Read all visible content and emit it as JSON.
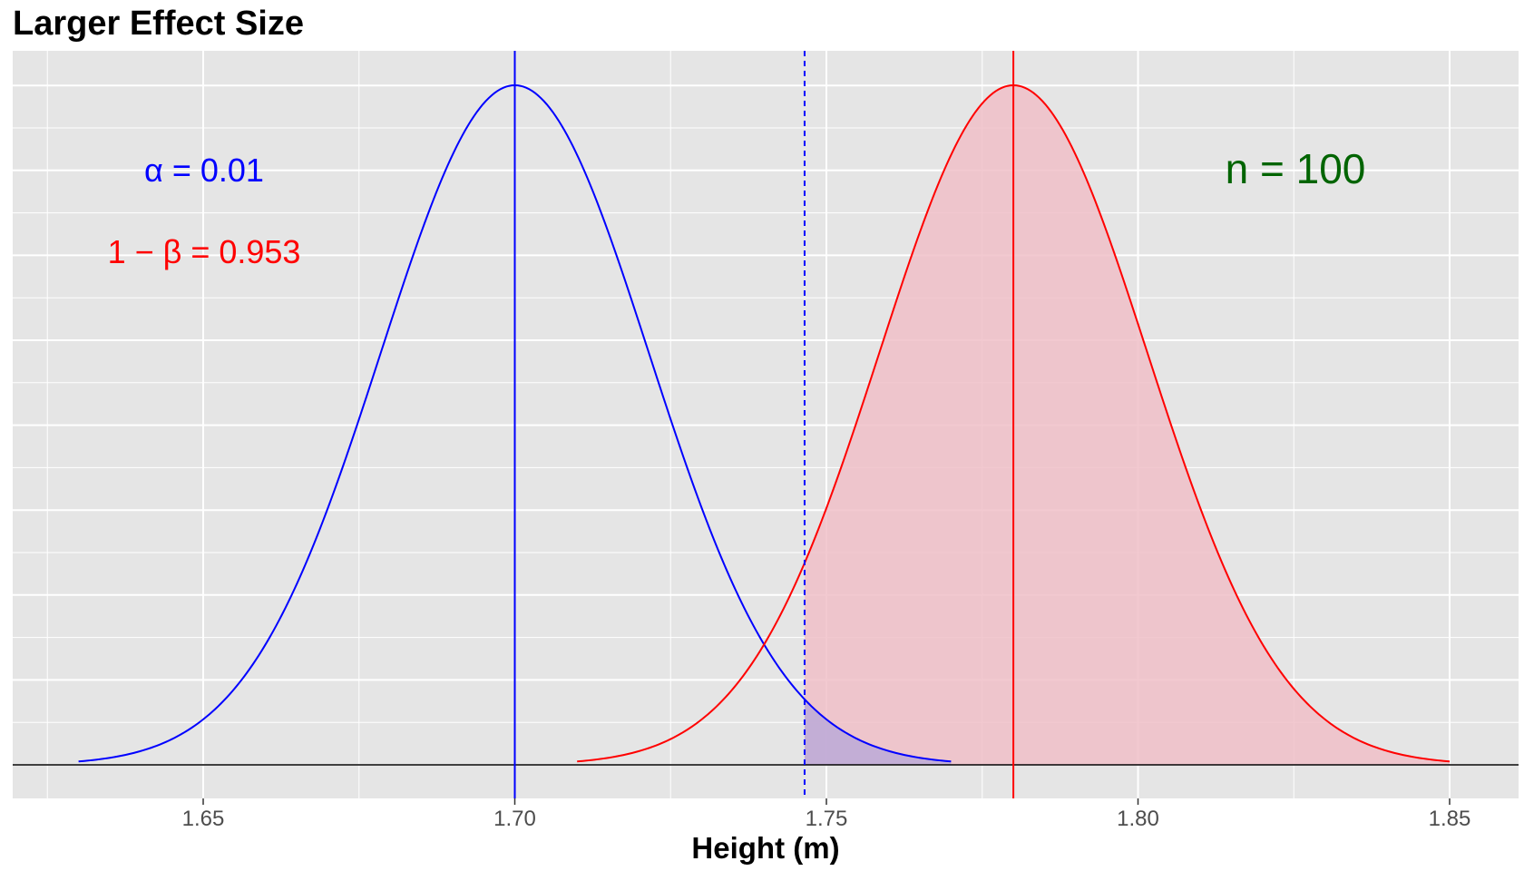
{
  "chart_data": {
    "type": "area",
    "title": "Larger Effect Size",
    "xlabel": "Height (m)",
    "ylabel": "",
    "xlim": [
      1.6225,
      1.8575
    ],
    "ylim": [
      0,
      1.08
    ],
    "x_ticks": [
      "1.65",
      "1.70",
      "1.75",
      "1.80",
      "1.85"
    ],
    "grid": true,
    "series": [
      {
        "mean": 1.7,
        "sd": 0.0215,
        "x_range": [
          1.63,
          1.77
        ],
        "color": "#0000ff"
      },
      {
        "mean": 1.78,
        "sd": 0.0215,
        "x_range": [
          1.71,
          1.85
        ],
        "color": "#ff0000",
        "shaded_from": 1.7465,
        "fill": "#f0c0c8"
      }
    ],
    "critical_value": 1.7465,
    "annotations": {
      "alpha_label": "α = 0.01",
      "alpha_color": "#0000ff",
      "power_label": "1 − β = 0.953",
      "power_color": "#ff0000",
      "n_label": "n = 100",
      "n_color": "#006400"
    }
  }
}
